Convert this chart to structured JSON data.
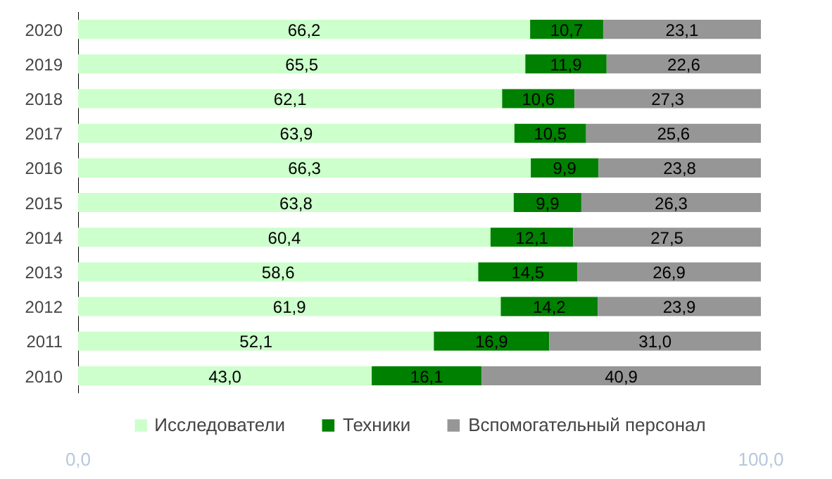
{
  "chart_data": {
    "type": "bar",
    "orientation": "horizontal",
    "stacked": true,
    "categories": [
      "2020",
      "2019",
      "2018",
      "2017",
      "2016",
      "2015",
      "2014",
      "2013",
      "2012",
      "2011",
      "2010"
    ],
    "series": [
      {
        "name": "Исследователи",
        "color": "#ccffcc",
        "values": [
          66.2,
          65.5,
          62.1,
          63.9,
          66.3,
          63.8,
          60.4,
          58.6,
          61.9,
          52.1,
          43.0
        ],
        "value_labels": [
          "66,2",
          "65,5",
          "62,1",
          "63,9",
          "66,3",
          "63,8",
          "60,4",
          "58,6",
          "61,9",
          "52,1",
          "43,0"
        ]
      },
      {
        "name": "Техники",
        "color": "#008000",
        "values": [
          10.7,
          11.9,
          10.6,
          10.5,
          9.9,
          9.9,
          12.1,
          14.5,
          14.2,
          16.9,
          16.1
        ],
        "value_labels": [
          "10,7",
          "11,9",
          "10,6",
          "10,5",
          "9,9",
          "9,9",
          "12,1",
          "14,5",
          "14,2",
          "16,9",
          "16,1"
        ]
      },
      {
        "name": "Вспомогательный персонал",
        "color": "#969696",
        "values": [
          23.1,
          22.6,
          27.3,
          25.6,
          23.8,
          26.3,
          27.5,
          26.9,
          23.9,
          31.0,
          40.9
        ],
        "value_labels": [
          "23,1",
          "22,6",
          "27,3",
          "25,6",
          "23,8",
          "26,3",
          "27,5",
          "26,9",
          "23,9",
          "31,0",
          "40,9"
        ]
      }
    ],
    "xlim": [
      0,
      100
    ],
    "xticks": [
      {
        "value": 0,
        "label": "0,0"
      },
      {
        "value": 100,
        "label": "100,0"
      }
    ],
    "grid": false,
    "legend": "bottom"
  }
}
